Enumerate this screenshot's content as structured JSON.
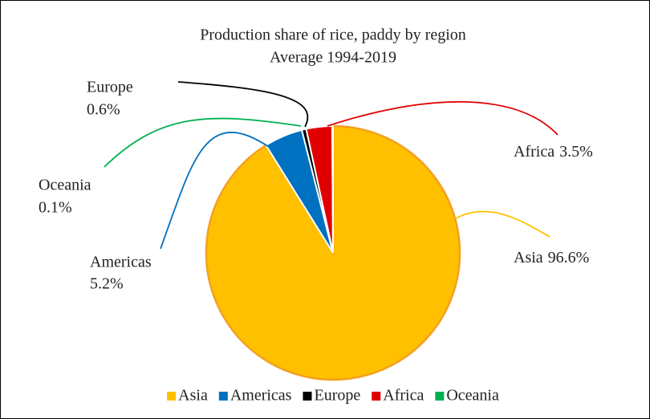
{
  "chart_data": {
    "type": "pie",
    "title": "Production share of rice, paddy by region",
    "subtitle": "Average 1994-2019",
    "categories": [
      "Asia",
      "Americas",
      "Europe",
      "Africa",
      "Oceania"
    ],
    "values": [
      96.6,
      5.2,
      0.6,
      3.5,
      0.1
    ],
    "value_labels": [
      "96.6%",
      "5.2%",
      "0.6%",
      "3.5%",
      "0.1%"
    ],
    "colors": [
      "#ffc000",
      "#0070c0",
      "#000000",
      "#e00000",
      "#00b050"
    ],
    "legend": "bottom"
  }
}
